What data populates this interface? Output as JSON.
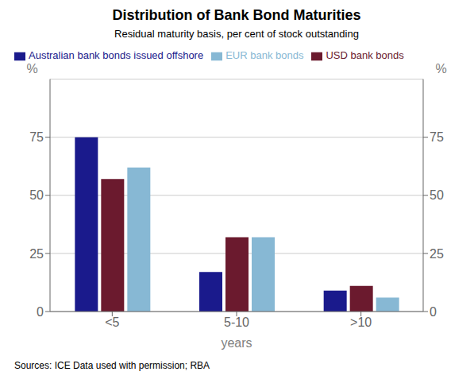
{
  "chart_data": {
    "type": "bar",
    "title": "Distribution of Bank Bond Maturities",
    "subtitle": "Residual maturity basis, per cent of stock outstanding",
    "xlabel": "years",
    "ylabel": "%",
    "y2label": "%",
    "source": "Sources:   ICE Data used with permission; RBA",
    "categories": [
      "<5",
      "5-10",
      ">10"
    ],
    "series": [
      {
        "name": "Australian bank bonds issued offshore",
        "color": "#1a1a8c",
        "values": [
          75,
          17,
          9
        ]
      },
      {
        "name": "USD bank bonds",
        "color": "#6b1a2e",
        "values": [
          57,
          32,
          11
        ]
      },
      {
        "name": "EUR bank bonds",
        "color": "#87b8d4",
        "values": [
          62,
          32,
          6
        ]
      }
    ],
    "ylim": [
      0,
      100
    ],
    "yticks": [
      0,
      25,
      50,
      75
    ],
    "y2lim": [
      0,
      100
    ],
    "y2ticks": [
      0,
      25,
      50,
      75
    ],
    "grid": true,
    "legend": "upper left"
  }
}
